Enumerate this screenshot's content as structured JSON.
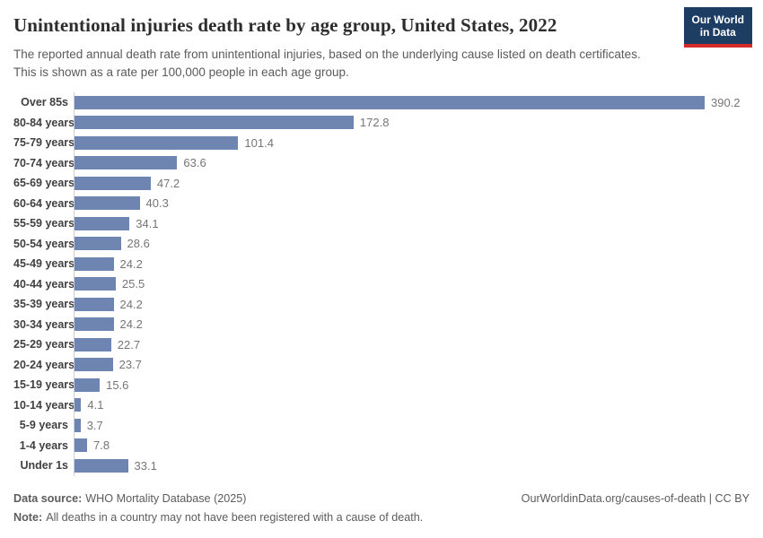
{
  "header": {
    "title": "Unintentional injuries death rate by age group, United States, 2022",
    "subtitle": "The reported annual death rate from unintentional injuries, based on the underlying cause listed on death certificates. This is shown as a rate per 100,000 people in each age group.",
    "logo": {
      "line1": "Our World",
      "line2": "in Data",
      "bg_color": "#1d3d63",
      "accent_color": "#d42b28"
    }
  },
  "chart_data": {
    "type": "bar",
    "orientation": "horizontal",
    "title": "Unintentional injuries death rate by age group, United States, 2022",
    "categories": [
      "Over 85s",
      "80-84 years",
      "75-79 years",
      "70-74 years",
      "65-69 years",
      "60-64 years",
      "55-59 years",
      "50-54 years",
      "45-49 years",
      "40-44 years",
      "35-39 years",
      "30-34 years",
      "25-29 years",
      "20-24 years",
      "15-19 years",
      "10-14 years",
      "5-9 years",
      "1-4 years",
      "Under 1s"
    ],
    "values": [
      390.2,
      172.8,
      101.4,
      63.6,
      47.2,
      40.3,
      34.1,
      28.6,
      24.2,
      25.5,
      24.2,
      24.2,
      22.7,
      23.7,
      15.6,
      4.1,
      3.7,
      7.8,
      33.1
    ],
    "value_labels": [
      "390.2",
      "172.8",
      "101.4",
      "63.6",
      "47.2",
      "40.3",
      "34.1",
      "28.6",
      "24.2",
      "25.5",
      "24.2",
      "24.2",
      "22.7",
      "23.7",
      "15.6",
      "4.1",
      "3.7",
      "7.8",
      "33.1"
    ],
    "xlim": [
      0,
      390.2
    ],
    "grid": false,
    "legend": "none",
    "bar_color": "#6d85b0",
    "category_label_color": "#404040",
    "value_label_color": "#757575"
  },
  "footer": {
    "datasource_label": "Data source:",
    "datasource_text": "WHO Mortality Database (2025)",
    "note_label": "Note:",
    "note_text": "All deaths in a country may not have been registered with a cause of death.",
    "credit": "OurWorldinData.org/causes-of-death | CC BY"
  }
}
